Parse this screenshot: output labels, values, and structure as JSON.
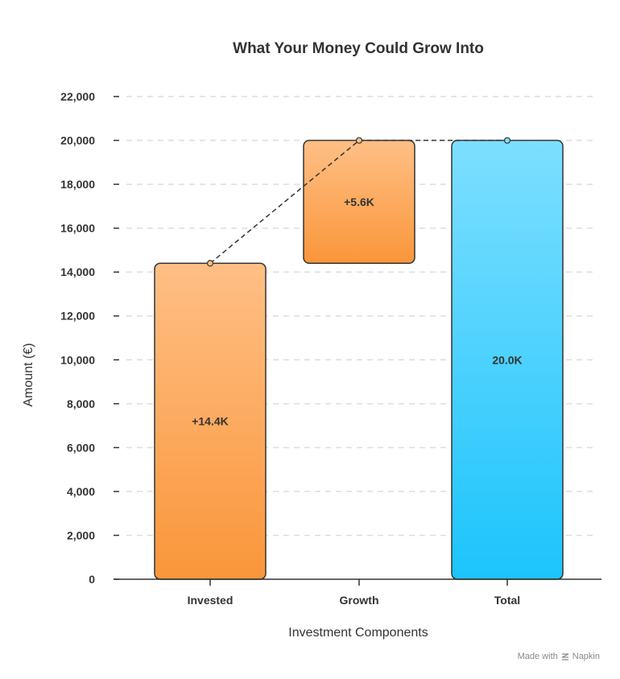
{
  "chart_data": {
    "type": "bar",
    "title": "What Your Money Could Grow Into",
    "xlabel": "Investment Components",
    "ylabel": "Amount (€)",
    "ylim": [
      0,
      22000
    ],
    "yticks": [
      0,
      2000,
      4000,
      6000,
      8000,
      10000,
      12000,
      14000,
      16000,
      18000,
      20000,
      22000
    ],
    "ytick_labels": [
      "0",
      "2,000",
      "4,000",
      "6,000",
      "8,000",
      "10,000",
      "12,000",
      "14,000",
      "16,000",
      "18,000",
      "20,000",
      "22,000"
    ],
    "grid": true,
    "categories": [
      "Invested",
      "Growth",
      "Total"
    ],
    "values": [
      14400,
      5600,
      20000
    ],
    "bar_bases": [
      0,
      14400,
      0
    ],
    "data_labels": [
      "+14.4K",
      "+5.6K",
      "20.0K"
    ],
    "colors": {
      "increase_top": "#ffbf85",
      "increase_bottom": "#fa963a",
      "total_top": "#7ddfff",
      "total_bottom": "#1cc4fc",
      "outline": "#333333"
    }
  },
  "footer": {
    "made_with": "Made with",
    "brand": "Napkin",
    "icon": "napkin-logo-icon"
  }
}
